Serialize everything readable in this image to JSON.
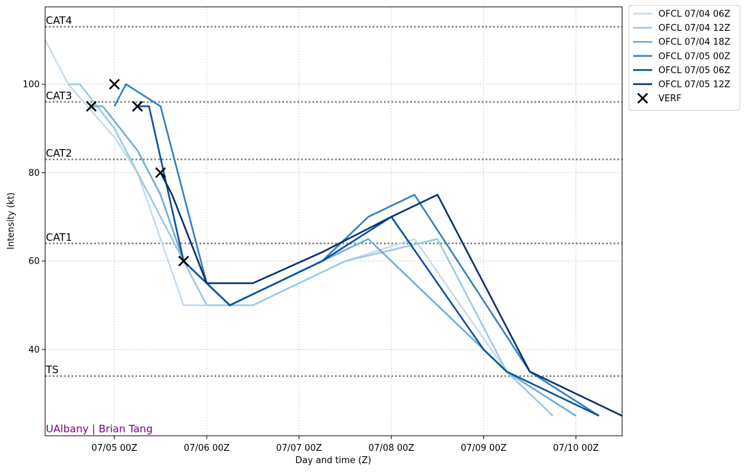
{
  "chart_data": {
    "type": "line",
    "xlabel": "Day and time (Z)",
    "ylabel": "Intensity (kt)",
    "xlim": [
      -0.75,
      5.5
    ],
    "ylim": [
      20.5,
      117.5
    ],
    "x_unit": "days from 07/05 00Z",
    "xticks": [
      {
        "x": 0,
        "label": "07/05 00Z"
      },
      {
        "x": 1,
        "label": "07/06 00Z"
      },
      {
        "x": 2,
        "label": "07/07 00Z"
      },
      {
        "x": 3,
        "label": "07/08 00Z"
      },
      {
        "x": 4,
        "label": "07/09 00Z"
      },
      {
        "x": 5,
        "label": "07/10 00Z"
      }
    ],
    "yticks": [
      40,
      60,
      80,
      100
    ],
    "grid": true,
    "legend_position": "outside-top-right",
    "thresholds": [
      {
        "label": "TS",
        "value": 34
      },
      {
        "label": "CAT1",
        "value": 64
      },
      {
        "label": "CAT2",
        "value": 83
      },
      {
        "label": "CAT3",
        "value": 96
      },
      {
        "label": "CAT4",
        "value": 113
      }
    ],
    "series": [
      {
        "name": "OFCL 07/04 06Z",
        "color": "#c6dbef",
        "points": [
          [
            -0.75,
            110
          ],
          [
            -0.625,
            105
          ],
          [
            -0.5,
            100
          ],
          [
            0,
            88
          ],
          [
            0.25,
            80
          ],
          [
            0.5,
            65
          ],
          [
            0.75,
            50
          ],
          [
            1.5,
            50
          ],
          [
            2.5,
            60
          ],
          [
            3.25,
            65
          ],
          [
            4.25,
            35
          ],
          [
            4.75,
            25
          ]
        ]
      },
      {
        "name": "OFCL 07/04 12Z",
        "color": "#9ecae1",
        "points": [
          [
            -0.5,
            100
          ],
          [
            -0.375,
            100
          ],
          [
            0,
            90
          ],
          [
            0.25,
            80
          ],
          [
            0.5,
            70
          ],
          [
            1,
            50
          ],
          [
            1.5,
            50
          ],
          [
            2.5,
            60
          ],
          [
            3.5,
            65
          ],
          [
            4.25,
            35
          ],
          [
            4.75,
            25
          ]
        ]
      },
      {
        "name": "OFCL 07/04 18Z",
        "color": "#6baed6",
        "points": [
          [
            -0.25,
            95
          ],
          [
            -0.125,
            95
          ],
          [
            0.25,
            85
          ],
          [
            0.5,
            75
          ],
          [
            0.75,
            60
          ],
          [
            1,
            55
          ],
          [
            1.25,
            50
          ],
          [
            2.25,
            60
          ],
          [
            2.75,
            65
          ],
          [
            4.25,
            35
          ],
          [
            5,
            25
          ]
        ]
      },
      {
        "name": "OFCL 07/05 00Z",
        "color": "#3182bd",
        "points": [
          [
            0,
            95
          ],
          [
            0.125,
            100
          ],
          [
            0.5,
            95
          ],
          [
            1,
            55
          ],
          [
            1.25,
            50
          ],
          [
            2.25,
            60
          ],
          [
            2.75,
            70
          ],
          [
            3.25,
            75
          ],
          [
            4.5,
            35
          ],
          [
            5.25,
            25
          ]
        ]
      },
      {
        "name": "OFCL 07/05 06Z",
        "color": "#08519c",
        "points": [
          [
            0.25,
            95
          ],
          [
            0.375,
            95
          ],
          [
            0.75,
            60
          ],
          [
            1,
            55
          ],
          [
            1.25,
            50
          ],
          [
            2.25,
            60
          ],
          [
            3,
            70
          ],
          [
            4,
            40
          ],
          [
            4.25,
            35
          ],
          [
            5.25,
            25
          ]
        ]
      },
      {
        "name": "OFCL 07/05 12Z",
        "color": "#08306b",
        "points": [
          [
            0.5,
            80
          ],
          [
            0.625,
            75
          ],
          [
            1,
            55
          ],
          [
            1.5,
            55
          ],
          [
            2.25,
            62
          ],
          [
            3,
            70
          ],
          [
            3.5,
            75
          ],
          [
            4.5,
            35
          ],
          [
            5.5,
            25
          ]
        ]
      }
    ],
    "verification": {
      "name": "VERF",
      "points": [
        [
          -0.25,
          95
        ],
        [
          0,
          100
        ],
        [
          0.25,
          95
        ],
        [
          0.5,
          80
        ],
        [
          0.75,
          60
        ]
      ]
    }
  },
  "credit": "UAlbany | Brian Tang"
}
